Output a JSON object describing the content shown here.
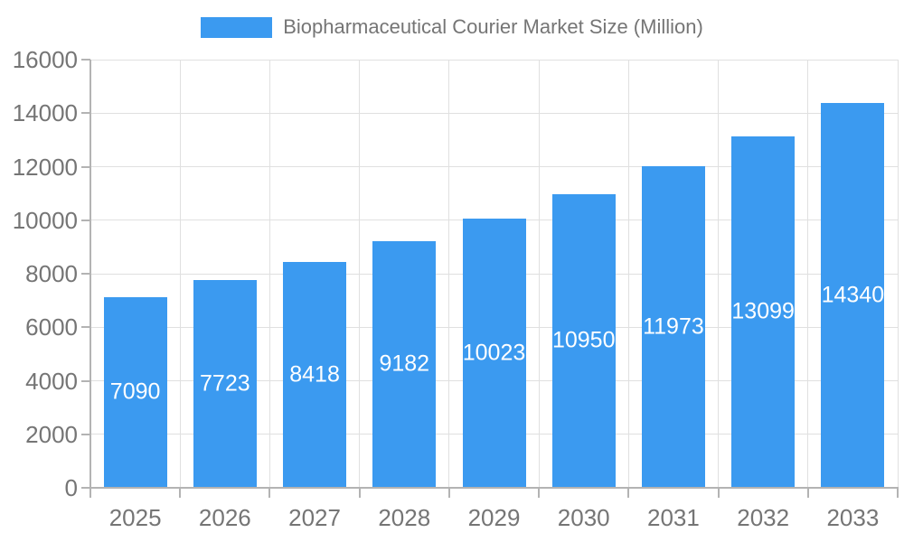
{
  "legend": {
    "label": "Biopharmaceutical Courier Market Size (Million)"
  },
  "colors": {
    "bar": "#3b9af0",
    "bar_label": "#ffffff",
    "axis_text": "#757575",
    "axis_line": "#b3b3b3",
    "gridline": "#e0e0e0",
    "background": "#ffffff"
  },
  "chart_data": {
    "type": "bar",
    "title": "Biopharmaceutical Courier Market Size (Million)",
    "series_name": "Biopharmaceutical Courier Market Size (Million)",
    "categories": [
      "2025",
      "2026",
      "2027",
      "2028",
      "2029",
      "2030",
      "2031",
      "2032",
      "2033"
    ],
    "values": [
      7090,
      7723,
      8418,
      9182,
      10023,
      10950,
      11973,
      13099,
      14340
    ],
    "value_labels_inside_bars": true,
    "xlabel": "",
    "ylabel": "",
    "ylim": [
      0,
      16000
    ],
    "yticks": [
      0,
      2000,
      4000,
      6000,
      8000,
      10000,
      12000,
      14000,
      16000
    ],
    "grid": true,
    "legend_position": "top-center"
  }
}
